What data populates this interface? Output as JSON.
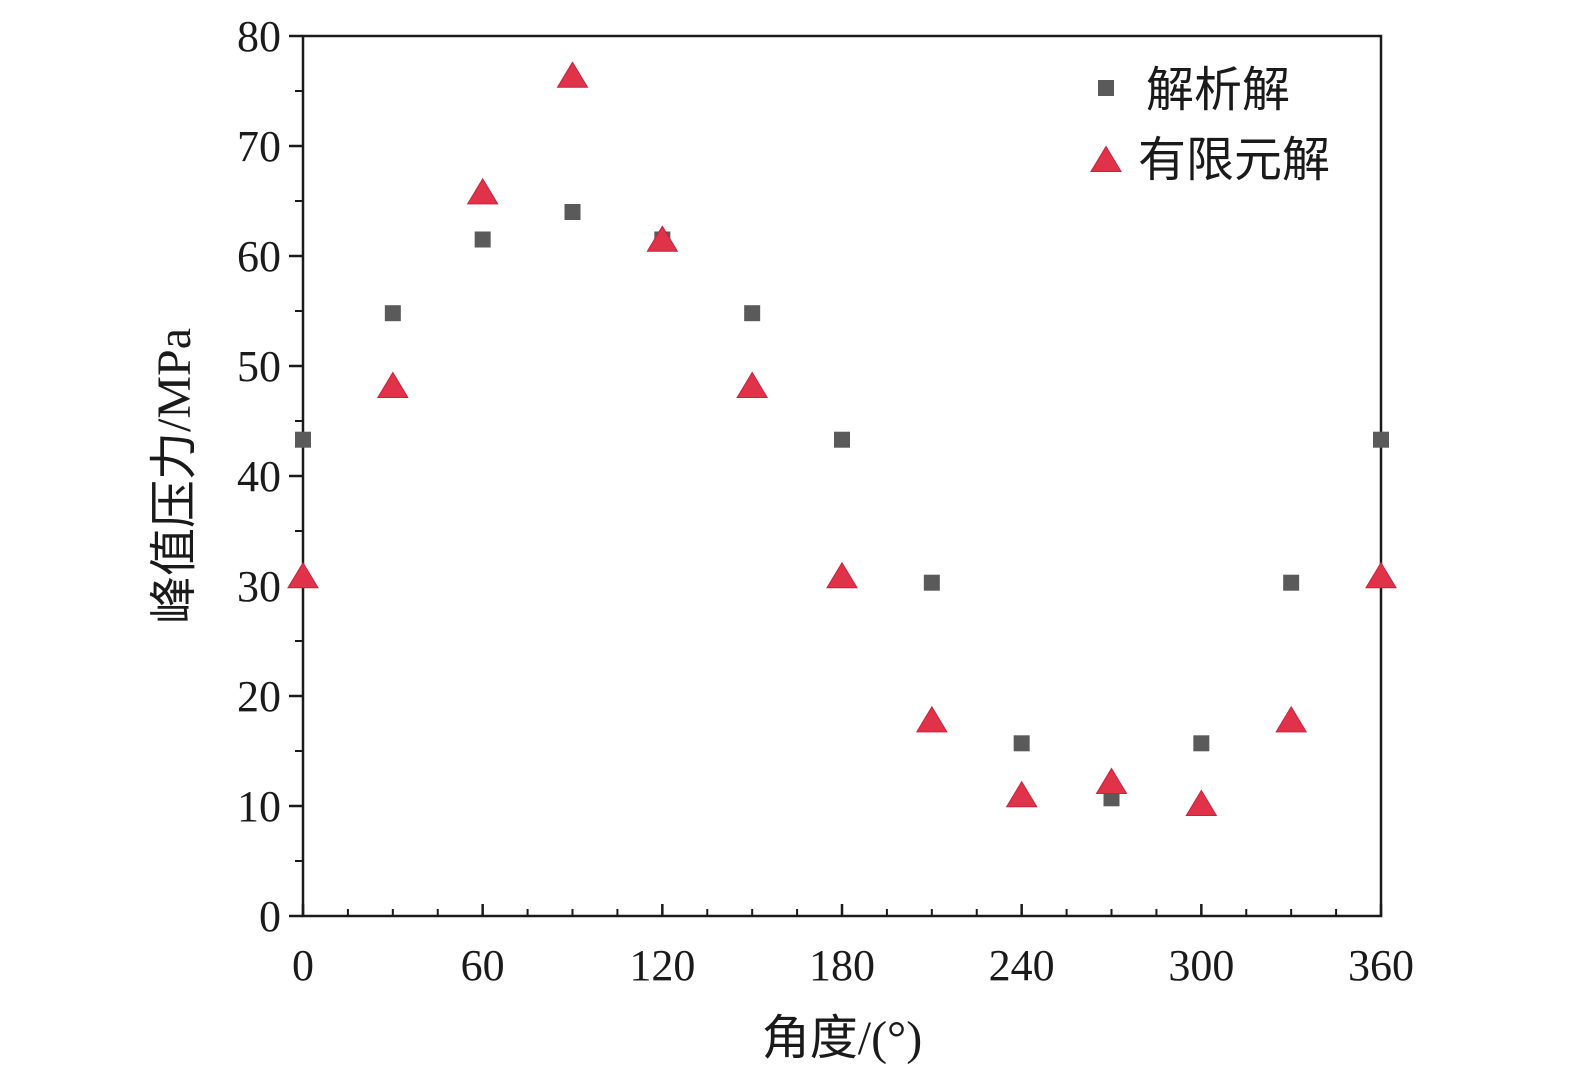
{
  "chart_data": {
    "type": "scatter",
    "title": "",
    "xlabel": "角度/(°)",
    "ylabel": "峰值压力/MPa",
    "xlim": [
      0,
      360
    ],
    "ylim": [
      0,
      80
    ],
    "xticks": [
      0,
      60,
      120,
      180,
      240,
      300,
      360
    ],
    "yticks": [
      0,
      10,
      20,
      30,
      40,
      50,
      60,
      70,
      80
    ],
    "x_minor_step": 15,
    "y_minor_step": 5,
    "grid": false,
    "legend_position": "top-right",
    "series": [
      {
        "name": "解析解",
        "marker": "square",
        "color": "#5a5a5a",
        "x": [
          0,
          30,
          60,
          90,
          120,
          150,
          180,
          210,
          240,
          270,
          300,
          330,
          360
        ],
        "y": [
          43.3,
          54.8,
          61.5,
          64.0,
          61.5,
          54.8,
          43.3,
          30.3,
          15.7,
          10.7,
          15.7,
          30.3,
          43.3
        ]
      },
      {
        "name": "有限元解",
        "marker": "triangle",
        "color": "#e0334a",
        "x": [
          0,
          30,
          60,
          90,
          120,
          150,
          180,
          210,
          240,
          270,
          300,
          330,
          360
        ],
        "y": [
          30.7,
          48.0,
          65.6,
          76.2,
          61.3,
          48.0,
          30.7,
          17.6,
          10.8,
          12.0,
          10.0,
          17.6,
          30.7
        ]
      }
    ]
  }
}
